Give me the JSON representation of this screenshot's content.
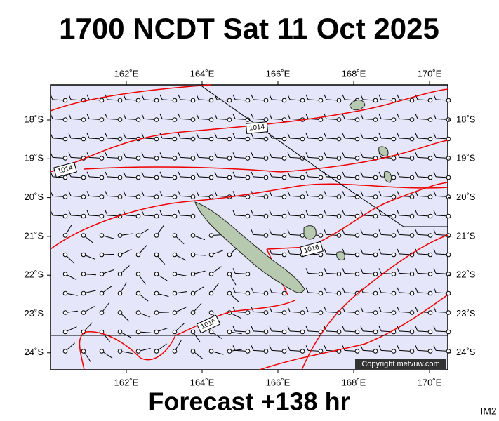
{
  "title": "1700 NCDT Sat 11 Oct 2025",
  "map": {
    "lon_labels": [
      "162˚E",
      "164˚E",
      "166˚E",
      "168˚E",
      "170˚E"
    ],
    "lat_labels": [
      "18˚S",
      "19˚S",
      "20˚S",
      "21˚S",
      "22˚S",
      "23˚S",
      "24˚S"
    ],
    "isobar_labels": [
      "1014",
      "1014",
      "1016",
      "1016"
    ],
    "copyright": "Copyright metvuw.com"
  },
  "footer": "Forecast +138 hr",
  "image_id": "IM2"
}
